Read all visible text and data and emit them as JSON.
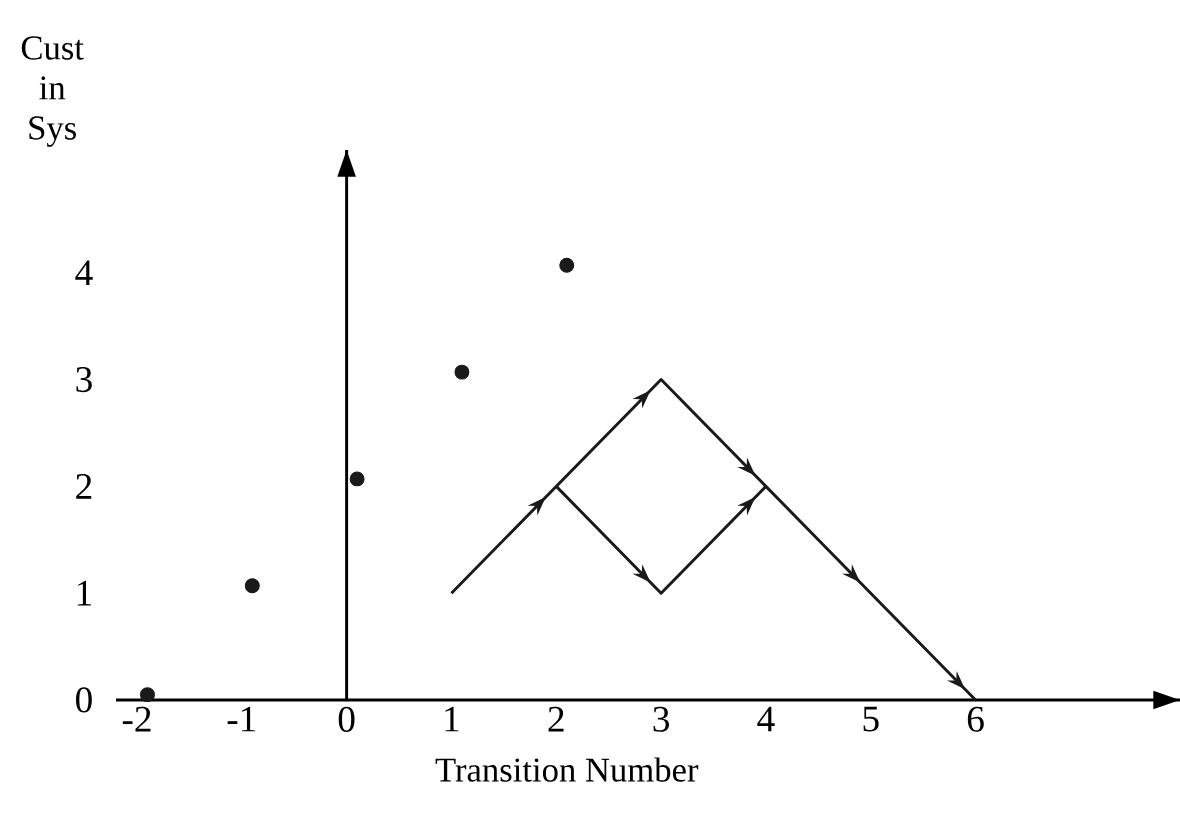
{
  "chart_data": {
    "type": "scatter",
    "xlabel": "Transition Number",
    "ylabel": "Cust in Sys",
    "xlim": [
      -2.2,
      7.95
    ],
    "ylim": [
      0,
      5.15
    ],
    "xticks": [
      -2,
      -1,
      0,
      1,
      2,
      3,
      4,
      5,
      6
    ],
    "yticks": [
      0,
      1,
      2,
      3,
      4
    ],
    "series": [
      {
        "color": "#1a1a1a",
        "marker": "circle",
        "x": [
          -1.9,
          -0.9,
          0.1,
          1.1,
          2.1
        ],
        "values": [
          0.05,
          1.07,
          2.07,
          3.07,
          4.07
        ]
      },
      {
        "type": "line",
        "color": "#1a1a1a",
        "marker": "none",
        "x": [
          1,
          2,
          3,
          4,
          5,
          6
        ],
        "values": [
          1,
          2,
          3,
          2,
          1,
          0
        ]
      },
      {
        "type": "line",
        "color": "#1a1a1a",
        "marker": "none",
        "x": [
          2,
          3,
          4
        ],
        "values": [
          2,
          1,
          2
        ]
      }
    ]
  }
}
